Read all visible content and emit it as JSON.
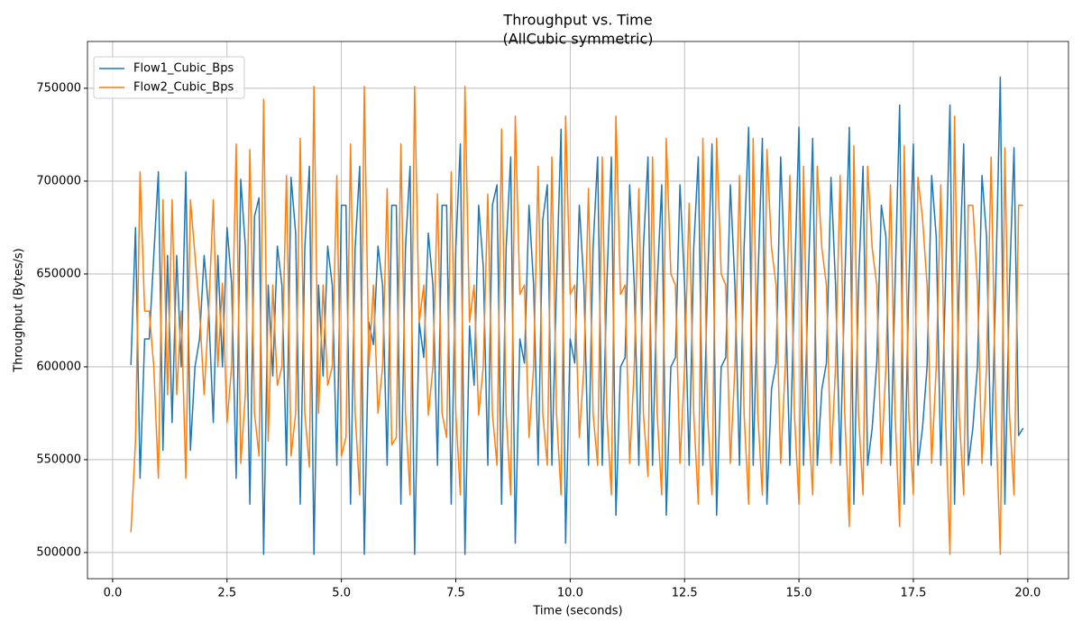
{
  "chart_data": {
    "type": "line",
    "title": "Throughput vs. Time",
    "subtitle": "(AllCubic symmetric)",
    "x_label": "Time (seconds)",
    "y_label": "Throughput (Bytes/s)",
    "xlim": [
      -0.55,
      20.89
    ],
    "ylim": [
      485900,
      775200
    ],
    "xticks": [
      {
        "value": 0,
        "label": "0.0"
      },
      2.5,
      {
        "value": 5,
        "label": "5.0"
      },
      7.5,
      {
        "value": 10,
        "label": "10.0"
      },
      12.5,
      {
        "value": 15,
        "label": "15.0"
      },
      17.5,
      {
        "value": 20,
        "label": "20.0"
      }
    ],
    "yticks": [
      500000,
      550000,
      600000,
      650000,
      700000,
      750000
    ],
    "grid": true,
    "legend": "upper-left",
    "x": [
      0.4,
      0.5,
      0.6,
      0.7,
      0.8,
      0.9,
      1.0,
      1.1,
      1.2,
      1.3,
      1.4,
      1.5,
      1.6,
      1.7,
      1.8,
      1.9,
      2.0,
      2.1,
      2.2,
      2.3,
      2.4,
      2.5,
      2.6,
      2.7,
      2.8,
      2.9,
      3.0,
      3.1,
      3.2,
      3.3,
      3.4,
      3.5,
      3.6,
      3.7,
      3.8,
      3.9,
      4.0,
      4.1,
      4.2,
      4.3,
      4.4,
      4.5,
      4.6,
      4.7,
      4.8,
      4.9,
      5.0,
      5.1,
      5.2,
      5.3,
      5.4,
      5.5,
      5.6,
      5.7,
      5.8,
      5.9,
      6.0,
      6.1,
      6.2,
      6.3,
      6.4,
      6.5,
      6.6,
      6.7,
      6.8,
      6.9,
      7.0,
      7.1,
      7.2,
      7.3,
      7.4,
      7.5,
      7.6,
      7.7,
      7.8,
      7.9,
      8.0,
      8.1,
      8.2,
      8.3,
      8.4,
      8.5,
      8.6,
      8.7,
      8.8,
      8.9,
      9.0,
      9.1,
      9.2,
      9.3,
      9.4,
      9.5,
      9.6,
      9.7,
      9.8,
      9.9,
      10.0,
      10.1,
      10.2,
      10.3,
      10.4,
      10.5,
      10.6,
      10.7,
      10.8,
      10.9,
      11.0,
      11.1,
      11.2,
      11.3,
      11.4,
      11.5,
      11.6,
      11.7,
      11.8,
      11.9,
      12.0,
      12.1,
      12.2,
      12.3,
      12.4,
      12.5,
      12.6,
      12.7,
      12.8,
      12.9,
      13.0,
      13.1,
      13.2,
      13.3,
      13.4,
      13.5,
      13.6,
      13.7,
      13.8,
      13.9,
      14.0,
      14.1,
      14.2,
      14.3,
      14.4,
      14.5,
      14.6,
      14.7,
      14.8,
      14.9,
      15.0,
      15.1,
      15.2,
      15.3,
      15.4,
      15.5,
      15.6,
      15.7,
      15.8,
      15.9,
      16.0,
      16.1,
      16.2,
      16.3,
      16.4,
      16.5,
      16.6,
      16.7,
      16.8,
      16.9,
      17.0,
      17.1,
      17.2,
      17.3,
      17.4,
      17.5,
      17.6,
      17.7,
      17.8,
      17.9,
      18.0,
      18.1,
      18.2,
      18.3,
      18.4,
      18.5,
      18.6,
      18.7,
      18.8,
      18.9,
      19.0,
      19.1,
      19.2,
      19.3,
      19.4,
      19.5,
      19.6,
      19.7,
      19.8,
      19.9
    ],
    "series": [
      {
        "name": "Flow1_Cubic_Bps",
        "color": "#1f77b4",
        "values": [
          601000,
          675000,
          540000,
          615000,
          615000,
          660000,
          705000,
          555000,
          660000,
          570000,
          660000,
          600000,
          705000,
          555000,
          600000,
          615000,
          660000,
          630000,
          570000,
          660000,
          600000,
          675000,
          645000,
          540000,
          701000,
          665000,
          526000,
          681000,
          691000,
          499000,
          644000,
          595000,
          665000,
          644000,
          547000,
          702000,
          672000,
          526000,
          664000,
          708000,
          499000,
          644000,
          595000,
          665000,
          644000,
          547000,
          687000,
          687000,
          526000,
          664000,
          708000,
          499000,
          624000,
          612000,
          665000,
          644000,
          547000,
          687000,
          687000,
          526000,
          664000,
          708000,
          499000,
          624000,
          605000,
          672000,
          644000,
          547000,
          687000,
          687000,
          526000,
          664000,
          720000,
          499000,
          622000,
          590000,
          687000,
          654000,
          547000,
          687000,
          698000,
          526000,
          664000,
          713000,
          505000,
          615000,
          602000,
          687000,
          644000,
          547000,
          679000,
          698000,
          547000,
          644000,
          728000,
          505000,
          615000,
          602000,
          687000,
          644000,
          547000,
          664000,
          713000,
          547000,
          644000,
          713000,
          520000,
          600000,
          605000,
          698000,
          644000,
          547000,
          664000,
          713000,
          547000,
          644000,
          698000,
          520000,
          600000,
          605000,
          698000,
          644000,
          547000,
          664000,
          713000,
          547000,
          644000,
          720000,
          520000,
          600000,
          605000,
          698000,
          644000,
          547000,
          664000,
          729000,
          547000,
          644000,
          723000,
          526000,
          588000,
          602000,
          713000,
          644000,
          547000,
          644000,
          729000,
          547000,
          644000,
          723000,
          547000,
          588000,
          602000,
          702000,
          644000,
          547000,
          644000,
          729000,
          526000,
          644000,
          708000,
          547000,
          567000,
          602000,
          687000,
          670000,
          547000,
          644000,
          741000,
          526000,
          644000,
          720000,
          547000,
          567000,
          600000,
          703000,
          670000,
          547000,
          644000,
          741000,
          526000,
          644000,
          720000,
          547000,
          567000,
          600000,
          703000,
          670000,
          547000,
          644000,
          756000,
          526000,
          644000,
          718000,
          563000,
          567000
        ]
      },
      {
        "name": "Flow2_Cubic_Bps",
        "color": "#ff7f0e",
        "values": [
          511000,
          560000,
          705000,
          630000,
          630000,
          600000,
          540000,
          690000,
          585000,
          690000,
          585000,
          630000,
          540000,
          690000,
          660000,
          630000,
          585000,
          630000,
          690000,
          600000,
          645000,
          570000,
          600000,
          720000,
          548000,
          585000,
          717000,
          575000,
          552000,
          744000,
          560000,
          644000,
          590000,
          600000,
          703000,
          552000,
          575000,
          723000,
          575000,
          546000,
          751000,
          575000,
          644000,
          590000,
          600000,
          703000,
          552000,
          562000,
          720000,
          575000,
          531000,
          751000,
          600000,
          644000,
          575000,
          600000,
          696000,
          558000,
          562000,
          720000,
          575000,
          531000,
          751000,
          624000,
          644000,
          574000,
          600000,
          693000,
          575000,
          562000,
          705000,
          575000,
          531000,
          751000,
          624000,
          644000,
          574000,
          600000,
          693000,
          575000,
          547000,
          728000,
          575000,
          531000,
          735000,
          639000,
          644000,
          562000,
          600000,
          708000,
          575000,
          547000,
          713000,
          575000,
          531000,
          735000,
          639000,
          644000,
          562000,
          600000,
          696000,
          575000,
          547000,
          713000,
          575000,
          531000,
          735000,
          639000,
          644000,
          548000,
          600000,
          696000,
          575000,
          541000,
          713000,
          575000,
          531000,
          723000,
          650000,
          644000,
          548000,
          600000,
          688000,
          575000,
          526000,
          723000,
          575000,
          531000,
          723000,
          650000,
          644000,
          548000,
          600000,
          703000,
          575000,
          526000,
          723000,
          575000,
          531000,
          717000,
          664000,
          644000,
          548000,
          600000,
          703000,
          575000,
          526000,
          708000,
          575000,
          531000,
          708000,
          664000,
          644000,
          548000,
          600000,
          703000,
          575000,
          514000,
          719000,
          575000,
          531000,
          708000,
          664000,
          644000,
          548000,
          600000,
          698000,
          575000,
          514000,
          719000,
          575000,
          531000,
          702000,
          680000,
          644000,
          548000,
          600000,
          698000,
          575000,
          499000,
          735000,
          575000,
          531000,
          687000,
          687000,
          644000,
          548000,
          600000,
          713000,
          575000,
          499000,
          718000,
          575000,
          531000,
          687000,
          687000
        ]
      }
    ]
  }
}
